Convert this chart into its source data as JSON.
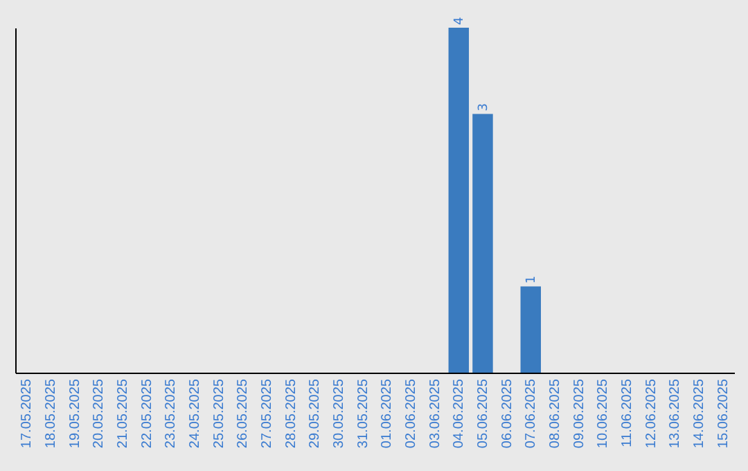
{
  "chart_data": {
    "type": "bar",
    "categories": [
      "17.05.2025",
      "18.05.2025",
      "19.05.2025",
      "20.05.2025",
      "21.05.2025",
      "22.05.2025",
      "23.05.2025",
      "24.05.2025",
      "25.05.2025",
      "26.05.2025",
      "27.05.2025",
      "28.05.2025",
      "29.05.2025",
      "30.05.2025",
      "31.05.2025",
      "01.06.2025",
      "02.06.2025",
      "03.06.2025",
      "04.06.2025",
      "05.06.2025",
      "06.06.2025",
      "07.06.2025",
      "08.06.2025",
      "09.06.2025",
      "10.06.2025",
      "11.06.2025",
      "12.06.2025",
      "13.06.2025",
      "14.06.2025",
      "15.06.2025"
    ],
    "values": [
      null,
      null,
      null,
      null,
      null,
      null,
      null,
      null,
      null,
      null,
      null,
      null,
      null,
      null,
      null,
      null,
      null,
      null,
      4,
      3,
      null,
      1,
      null,
      null,
      null,
      null,
      null,
      null,
      null,
      null
    ],
    "value_labels": [
      null,
      null,
      null,
      null,
      null,
      null,
      null,
      null,
      null,
      null,
      null,
      null,
      null,
      null,
      null,
      null,
      null,
      null,
      "4",
      "3",
      null,
      "1",
      null,
      null,
      null,
      null,
      null,
      null,
      null,
      null
    ],
    "color": "#3a7bbf",
    "tick_labels": "x",
    "grid": false
  }
}
